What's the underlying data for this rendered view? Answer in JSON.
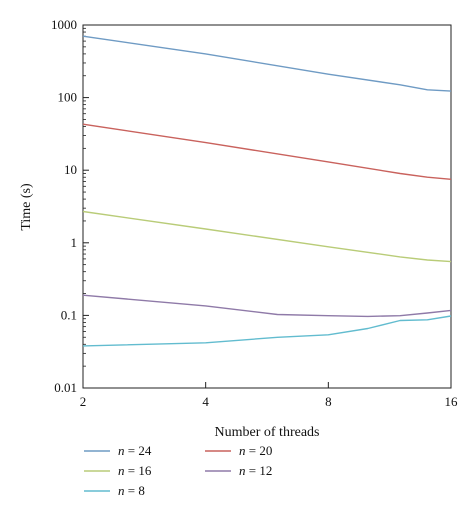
{
  "chart_data": {
    "type": "line",
    "xlabel": "Number of threads",
    "ylabel": "Time (s)",
    "x_scale": "log2",
    "y_scale": "log10",
    "xlim": [
      2,
      16
    ],
    "ylim": [
      0.01,
      1000
    ],
    "x_ticks": [
      2,
      4,
      8,
      16
    ],
    "x_tick_labels": [
      "2",
      "4",
      "8",
      "16"
    ],
    "y_ticks": [
      0.01,
      0.1,
      1,
      10,
      100,
      1000
    ],
    "y_tick_labels": [
      "0.01",
      "0.1",
      "1",
      "10",
      "100",
      "1000"
    ],
    "grid": false,
    "legend_position": "bottom-left",
    "series": [
      {
        "name": "n = 24",
        "color": "#6f9bc4",
        "x": [
          2,
          4,
          8,
          12,
          14,
          16
        ],
        "y": [
          700,
          400,
          210,
          150,
          128,
          123
        ]
      },
      {
        "name": "n = 20",
        "color": "#c9625d",
        "x": [
          2,
          4,
          8,
          12,
          14,
          16
        ],
        "y": [
          43,
          24,
          13,
          9.0,
          8.0,
          7.5
        ]
      },
      {
        "name": "n = 16",
        "color": "#b9cc78",
        "x": [
          2,
          4,
          8,
          12,
          14,
          16
        ],
        "y": [
          2.7,
          1.55,
          0.88,
          0.64,
          0.58,
          0.55
        ]
      },
      {
        "name": "n = 12",
        "color": "#8f7aa8",
        "x": [
          2,
          4,
          6,
          8,
          10,
          12,
          14,
          16
        ],
        "y": [
          0.19,
          0.135,
          0.103,
          0.099,
          0.097,
          0.099,
          0.108,
          0.117
        ]
      },
      {
        "name": "n = 8",
        "color": "#62bccf",
        "x": [
          2,
          4,
          6,
          8,
          10,
          12,
          14,
          16
        ],
        "y": [
          0.038,
          0.042,
          0.05,
          0.054,
          0.066,
          0.085,
          0.087,
          0.098
        ]
      }
    ]
  }
}
